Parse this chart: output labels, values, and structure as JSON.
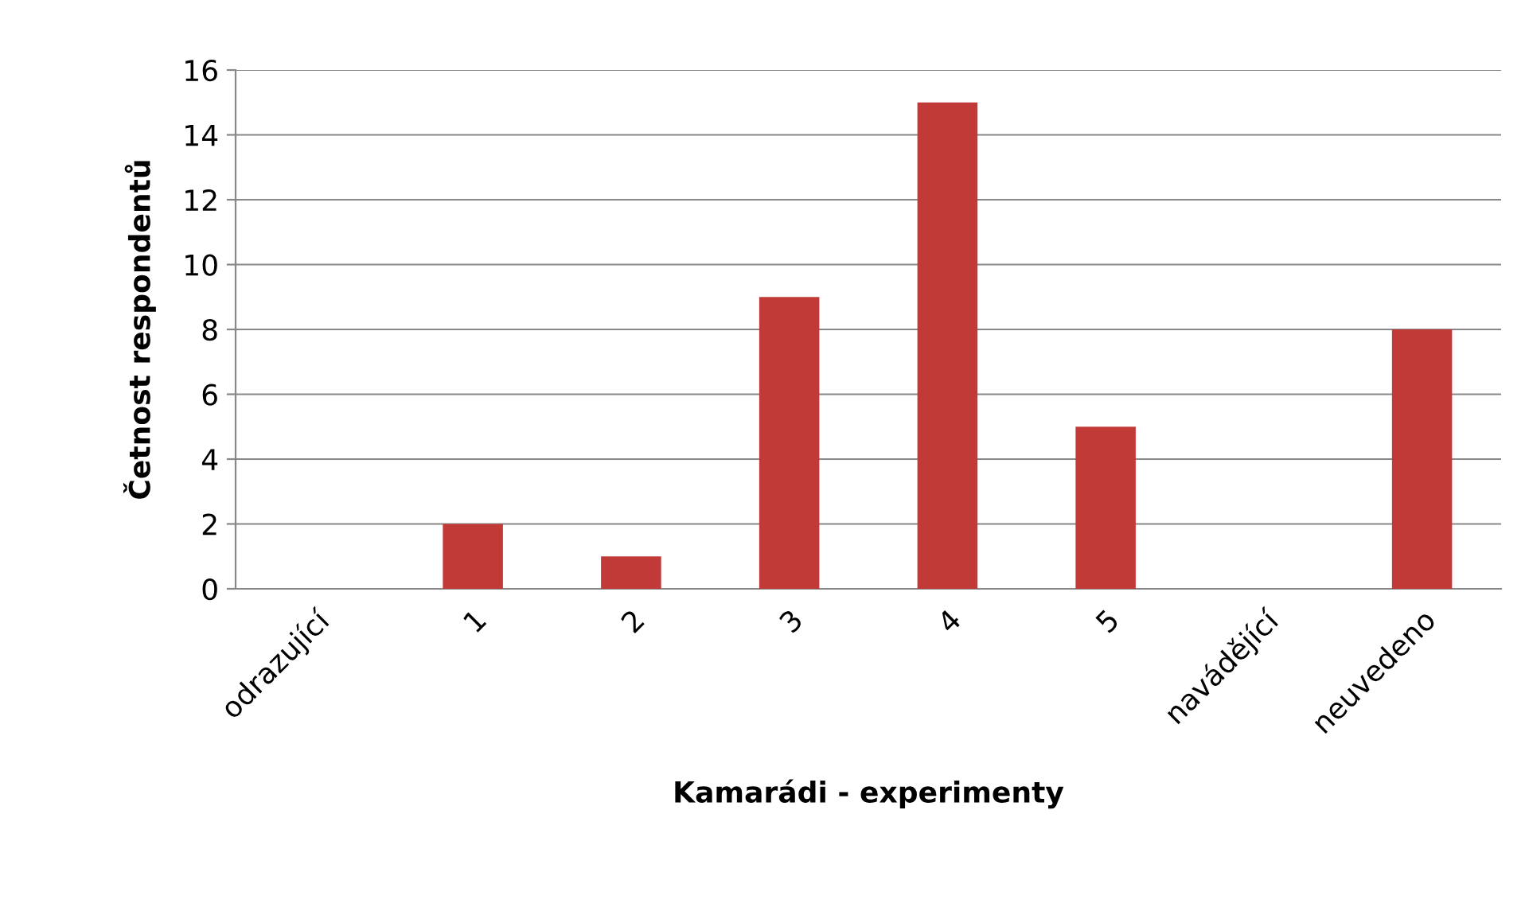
{
  "chart_data": {
    "type": "bar",
    "xlabel": "Kamarádi - experimenty",
    "ylabel": "Četnost respondentů",
    "categories": [
      "odrazující",
      "1",
      "2",
      "3",
      "4",
      "5",
      "navádějící",
      "neuvedeno"
    ],
    "values": [
      0,
      2,
      1,
      9,
      15,
      5,
      0,
      8
    ],
    "color": "#c23a38",
    "ylim": [
      0,
      16
    ],
    "yticks": [
      0,
      2,
      4,
      6,
      8,
      10,
      12,
      14,
      16
    ],
    "grid": "y"
  }
}
